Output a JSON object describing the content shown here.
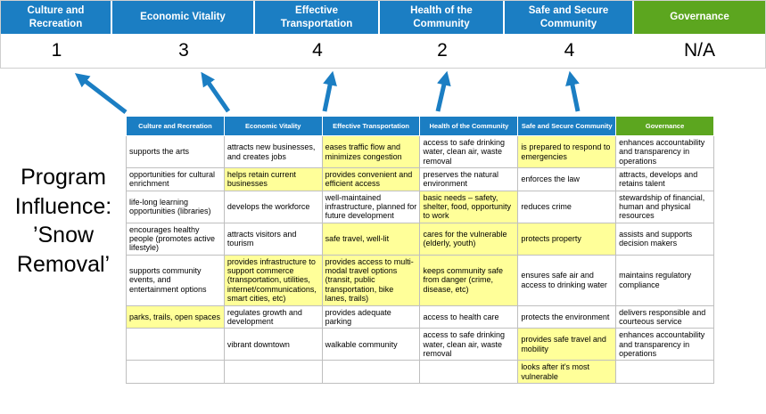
{
  "title": "Program Influence: ’Snow Removal’",
  "colors": {
    "header_blue": "#1B7EC3",
    "header_green": "#5CA61F",
    "highlight_yellow": "#FFFF99",
    "arrow_blue": "#1B7EC3",
    "grid_gray": "#BFBFBF",
    "score_text": "#000000"
  },
  "top": {
    "columns": [
      {
        "label": "Culture and Recreation",
        "score": "1",
        "theme": "blue"
      },
      {
        "label": "Economic Vitality",
        "score": "3",
        "theme": "blue"
      },
      {
        "label": "Effective Transportation",
        "score": "4",
        "theme": "blue"
      },
      {
        "label": "Health of the Community",
        "score": "2",
        "theme": "blue"
      },
      {
        "label": "Safe and Secure Community",
        "score": "4",
        "theme": "blue"
      },
      {
        "label": "Governance",
        "score": "N/A",
        "theme": "green"
      }
    ]
  },
  "matrix": {
    "headers": [
      {
        "label": "Culture and Recreation",
        "theme": "blue"
      },
      {
        "label": "Economic Vitality",
        "theme": "blue"
      },
      {
        "label": "Effective Transportation",
        "theme": "blue"
      },
      {
        "label": "Health of the Community",
        "theme": "blue"
      },
      {
        "label": "Safe and Secure Community",
        "theme": "blue"
      },
      {
        "label": "Governance",
        "theme": "green"
      }
    ],
    "rows": [
      [
        {
          "text": "supports the arts",
          "highlight": false
        },
        {
          "text": "attracts new businesses, and creates jobs",
          "highlight": false
        },
        {
          "text": "eases traffic flow and minimizes congestion",
          "highlight": true
        },
        {
          "text": "access to safe drinking water, clean air, waste removal",
          "highlight": false
        },
        {
          "text": "is prepared to respond to emergencies",
          "highlight": true
        },
        {
          "text": "enhances accountability and transparency in operations",
          "highlight": false
        }
      ],
      [
        {
          "text": "opportunities for cultural enrichment",
          "highlight": false
        },
        {
          "text": "helps retain current businesses",
          "highlight": true
        },
        {
          "text": "provides convenient and efficient access",
          "highlight": true
        },
        {
          "text": "preserves the natural environment",
          "highlight": false
        },
        {
          "text": "enforces the law",
          "highlight": false
        },
        {
          "text": "attracts, develops and retains talent",
          "highlight": false
        }
      ],
      [
        {
          "text": "life-long learning opportunities (libraries)",
          "highlight": false
        },
        {
          "text": "develops the workforce",
          "highlight": false
        },
        {
          "text": "well-maintained infrastructure, planned for future development",
          "highlight": false
        },
        {
          "text": "basic needs – safety, shelter, food, opportunity to work",
          "highlight": true
        },
        {
          "text": "reduces crime",
          "highlight": false
        },
        {
          "text": "stewardship of financial, human and physical resources",
          "highlight": false
        }
      ],
      [
        {
          "text": "encourages healthy people (promotes active lifestyle)",
          "highlight": false
        },
        {
          "text": "attracts visitors and tourism",
          "highlight": false
        },
        {
          "text": "safe travel, well-lit",
          "highlight": true
        },
        {
          "text": "cares for the vulnerable (elderly, youth)",
          "highlight": true
        },
        {
          "text": "protects property",
          "highlight": true
        },
        {
          "text": "assists and supports decision makers",
          "highlight": false
        }
      ],
      [
        {
          "text": "supports community events, and entertainment options",
          "highlight": false
        },
        {
          "text": "provides infrastructure to support commerce (transportation, utilities, internet/communications, smart cities, etc)",
          "highlight": true
        },
        {
          "text": "provides access to multi-modal travel options (transit, public transportation, bike lanes, trails)",
          "highlight": true
        },
        {
          "text": "keeps community safe from danger (crime, disease, etc)",
          "highlight": true
        },
        {
          "text": "ensures safe air and access to drinking water",
          "highlight": false
        },
        {
          "text": "maintains regulatory compliance",
          "highlight": false
        }
      ],
      [
        {
          "text": "parks, trails, open spaces",
          "highlight": true
        },
        {
          "text": "regulates growth and development",
          "highlight": false
        },
        {
          "text": "provides adequate parking",
          "highlight": false
        },
        {
          "text": "access to health care",
          "highlight": false
        },
        {
          "text": "protects the environment",
          "highlight": false
        },
        {
          "text": "delivers responsible and courteous service",
          "highlight": false
        }
      ],
      [
        {
          "text": "",
          "highlight": false
        },
        {
          "text": "vibrant downtown",
          "highlight": false
        },
        {
          "text": "walkable community",
          "highlight": false
        },
        {
          "text": "access to safe drinking water, clean air, waste removal",
          "highlight": false
        },
        {
          "text": "provides safe travel and mobility",
          "highlight": true
        },
        {
          "text": "enhances accountability and transparency in operations",
          "highlight": false
        }
      ],
      [
        {
          "text": "",
          "highlight": false
        },
        {
          "text": "",
          "highlight": false
        },
        {
          "text": "",
          "highlight": false
        },
        {
          "text": "",
          "highlight": false
        },
        {
          "text": "looks after it's most vulnerable",
          "highlight": true
        },
        {
          "text": "",
          "highlight": false
        }
      ]
    ]
  }
}
